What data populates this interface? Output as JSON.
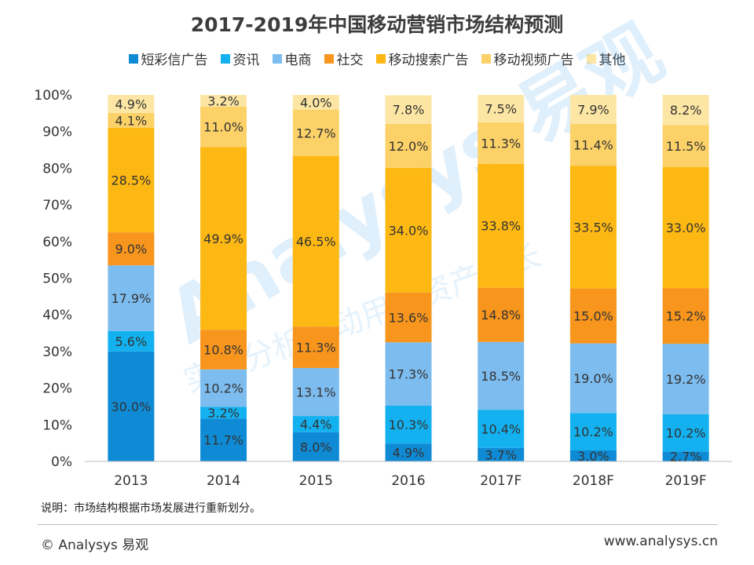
{
  "chart_data": {
    "type": "bar",
    "stacked": true,
    "title": "2017-2019年中国移动营销市场结构预测",
    "categories": [
      "2013",
      "2014",
      "2015",
      "2016",
      "2017F",
      "2018F",
      "2019F"
    ],
    "series": [
      {
        "name": "短彩信广告",
        "color": "#0f8bd6",
        "values": [
          30.0,
          11.7,
          8.0,
          4.9,
          3.7,
          3.0,
          2.7
        ],
        "labels": [
          "30.0%",
          "11.7%",
          "8.0%",
          "4.9%",
          "3.7%",
          "3.0%",
          "2.7%"
        ]
      },
      {
        "name": "资讯",
        "color": "#13b1f0",
        "values": [
          5.6,
          3.2,
          4.4,
          10.3,
          10.4,
          10.2,
          10.2
        ],
        "labels": [
          "5.6%",
          "3.2%",
          "4.4%",
          "10.3%",
          "10.4%",
          "10.2%",
          "10.2%"
        ]
      },
      {
        "name": "电商",
        "color": "#7dbcef",
        "values": [
          17.9,
          10.2,
          13.1,
          17.3,
          18.5,
          19.0,
          19.2
        ],
        "labels": [
          "17.9%",
          "10.2%",
          "13.1%",
          "17.3%",
          "18.5%",
          "19.0%",
          "19.2%"
        ]
      },
      {
        "name": "社交",
        "color": "#f7951d",
        "values": [
          9.0,
          10.8,
          11.3,
          13.6,
          14.8,
          15.0,
          15.2
        ],
        "labels": [
          "9.0%",
          "10.8%",
          "11.3%",
          "13.6%",
          "14.8%",
          "15.0%",
          "15.2%"
        ]
      },
      {
        "name": "移动搜索广告",
        "color": "#fdb813",
        "values": [
          28.5,
          49.9,
          46.5,
          34.0,
          33.8,
          33.5,
          33.0
        ],
        "labels": [
          "28.5%",
          "49.9%",
          "46.5%",
          "34.0%",
          "33.8%",
          "33.5%",
          "33.0%"
        ]
      },
      {
        "name": "移动视频广告",
        "color": "#fcd167",
        "values": [
          4.1,
          11.0,
          12.7,
          12.0,
          11.3,
          11.4,
          11.5
        ],
        "labels": [
          "4.1%",
          "11.0%",
          "12.7%",
          "12.0%",
          "11.3%",
          "11.4%",
          "11.5%"
        ]
      },
      {
        "name": "其他",
        "color": "#fde6a3",
        "values": [
          4.9,
          3.2,
          4.0,
          7.8,
          7.5,
          7.9,
          8.2
        ],
        "labels": [
          "4.9%",
          "3.2%",
          "4.0%",
          "7.8%",
          "7.5%",
          "7.9%",
          "8.2%"
        ]
      }
    ],
    "ylim": [
      0,
      100
    ],
    "yticks": [
      "0%",
      "10%",
      "20%",
      "30%",
      "40%",
      "50%",
      "60%",
      "70%",
      "80%",
      "90%",
      "100%"
    ],
    "xlabel": "",
    "ylabel": "",
    "legend_position": "top",
    "grid": false
  },
  "note": "说明：市场结构根据市场发展进行重新划分。",
  "footer": {
    "copyright": "© Analysys 易观",
    "website": "www.analysys.cn"
  },
  "watermark": {
    "text": "Analysys 易观",
    "slogan": "实时分析驱动用户资产成长"
  }
}
